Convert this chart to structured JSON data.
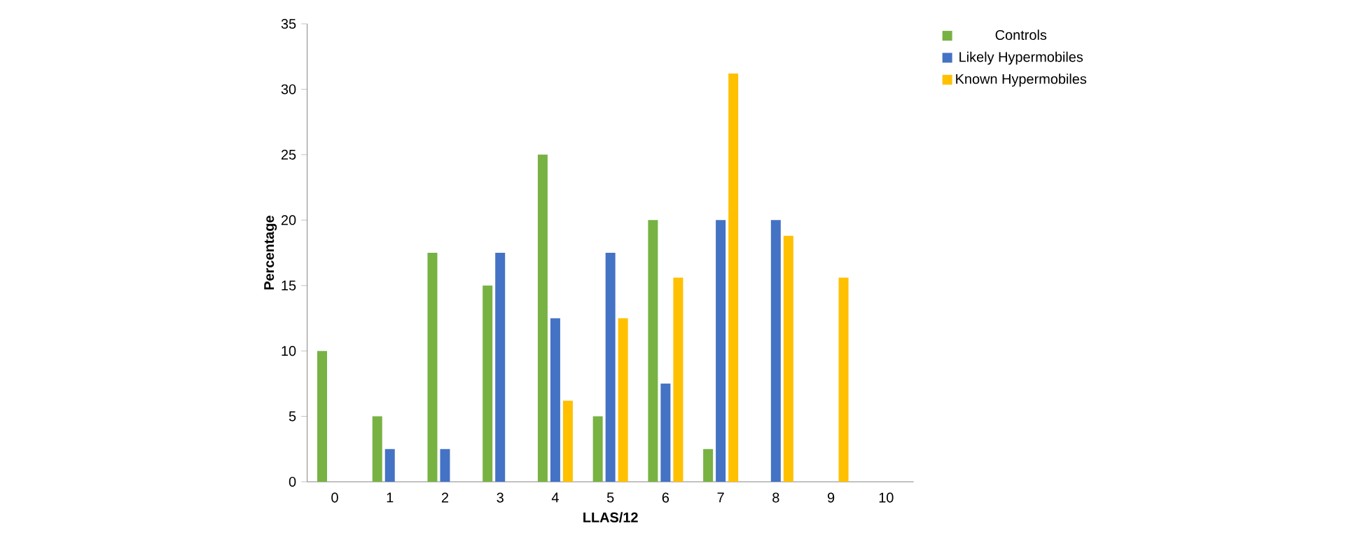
{
  "chart_data": {
    "type": "bar",
    "xlabel": "LLAS/12",
    "ylabel": "Percentage",
    "categories": [
      "0",
      "1",
      "2",
      "3",
      "4",
      "5",
      "6",
      "7",
      "8",
      "9",
      "10"
    ],
    "series": [
      {
        "name": "Controls",
        "color": "#77b243",
        "values": [
          10,
          5,
          17.5,
          15,
          25,
          5,
          20,
          2.5,
          0,
          0,
          0
        ]
      },
      {
        "name": "Likely Hypermobiles",
        "color": "#4472c4",
        "values": [
          0,
          2.5,
          2.5,
          17.5,
          12.5,
          17.5,
          7.5,
          20,
          20,
          0,
          0
        ]
      },
      {
        "name": "Known Hypermobiles",
        "color": "#ffc000",
        "values": [
          0,
          0,
          0,
          0,
          6.2,
          12.5,
          15.6,
          31.2,
          18.8,
          15.6,
          0
        ]
      }
    ],
    "ylim": [
      0,
      35
    ],
    "yticks": [
      0,
      5,
      10,
      15,
      20,
      25,
      30,
      35
    ],
    "legend": "top right"
  }
}
